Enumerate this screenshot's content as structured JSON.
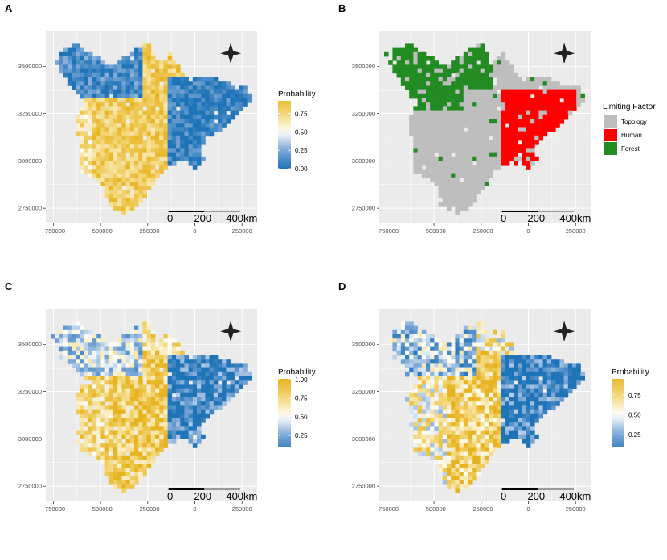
{
  "panels": [
    {
      "id": "A",
      "letter": "A",
      "mode": "probability",
      "legend": {
        "title": "Probability",
        "ticks": [
          "0.00",
          "0.25",
          "0.50",
          "0.75"
        ],
        "tick_values": [
          0.0,
          0.25,
          0.5,
          0.75
        ],
        "range": [
          0.0,
          0.92
        ]
      }
    },
    {
      "id": "B",
      "letter": "B",
      "mode": "categorical",
      "legend": {
        "title": "Limiting Factor",
        "items": [
          {
            "label": "Topology",
            "color": "#bebebe"
          },
          {
            "label": "Human",
            "color": "#ff0000"
          },
          {
            "label": "Forest",
            "color": "#228b22"
          }
        ]
      }
    },
    {
      "id": "C",
      "letter": "C",
      "mode": "probability",
      "legend": {
        "title": "Probability",
        "ticks": [
          "0.25",
          "0.50",
          "0.75",
          "1.00"
        ],
        "tick_values": [
          0.25,
          0.5,
          0.75,
          1.0
        ],
        "range": [
          0.1,
          1.0
        ]
      }
    },
    {
      "id": "D",
      "letter": "D",
      "mode": "probability",
      "legend": {
        "title": "Probability",
        "ticks": [
          "0.25",
          "0.50",
          "0.75"
        ],
        "tick_values": [
          0.25,
          0.5,
          0.75
        ],
        "range": [
          0.1,
          0.95
        ]
      }
    }
  ],
  "axes": {
    "x_ticks": [
      "−750000",
      "−500000",
      "−250000",
      "0",
      "250000"
    ],
    "x_values": [
      -750000,
      -500000,
      -250000,
      0,
      250000
    ],
    "y_ticks": [
      "2750000",
      "3000000",
      "3250000",
      "3500000"
    ],
    "y_values": [
      2750000,
      3000000,
      3250000,
      3500000
    ],
    "x_range": [
      -790000,
      330000
    ],
    "y_range": [
      2670000,
      3690000
    ]
  },
  "scalebar": {
    "labels": [
      "0",
      "200",
      "400km"
    ]
  },
  "colors": {
    "panel_bg": "#ebebeb",
    "grid": "#ffffff",
    "gradient_low": "#1f74b8",
    "gradient_mid_low": "#7aa6d6",
    "gradient_mid": "#ffffff",
    "gradient_mid_high": "#f3d77a",
    "gradient_high": "#e8b320",
    "topology": "#bebebe",
    "human": "#ff0000",
    "forest": "#228b22"
  }
}
